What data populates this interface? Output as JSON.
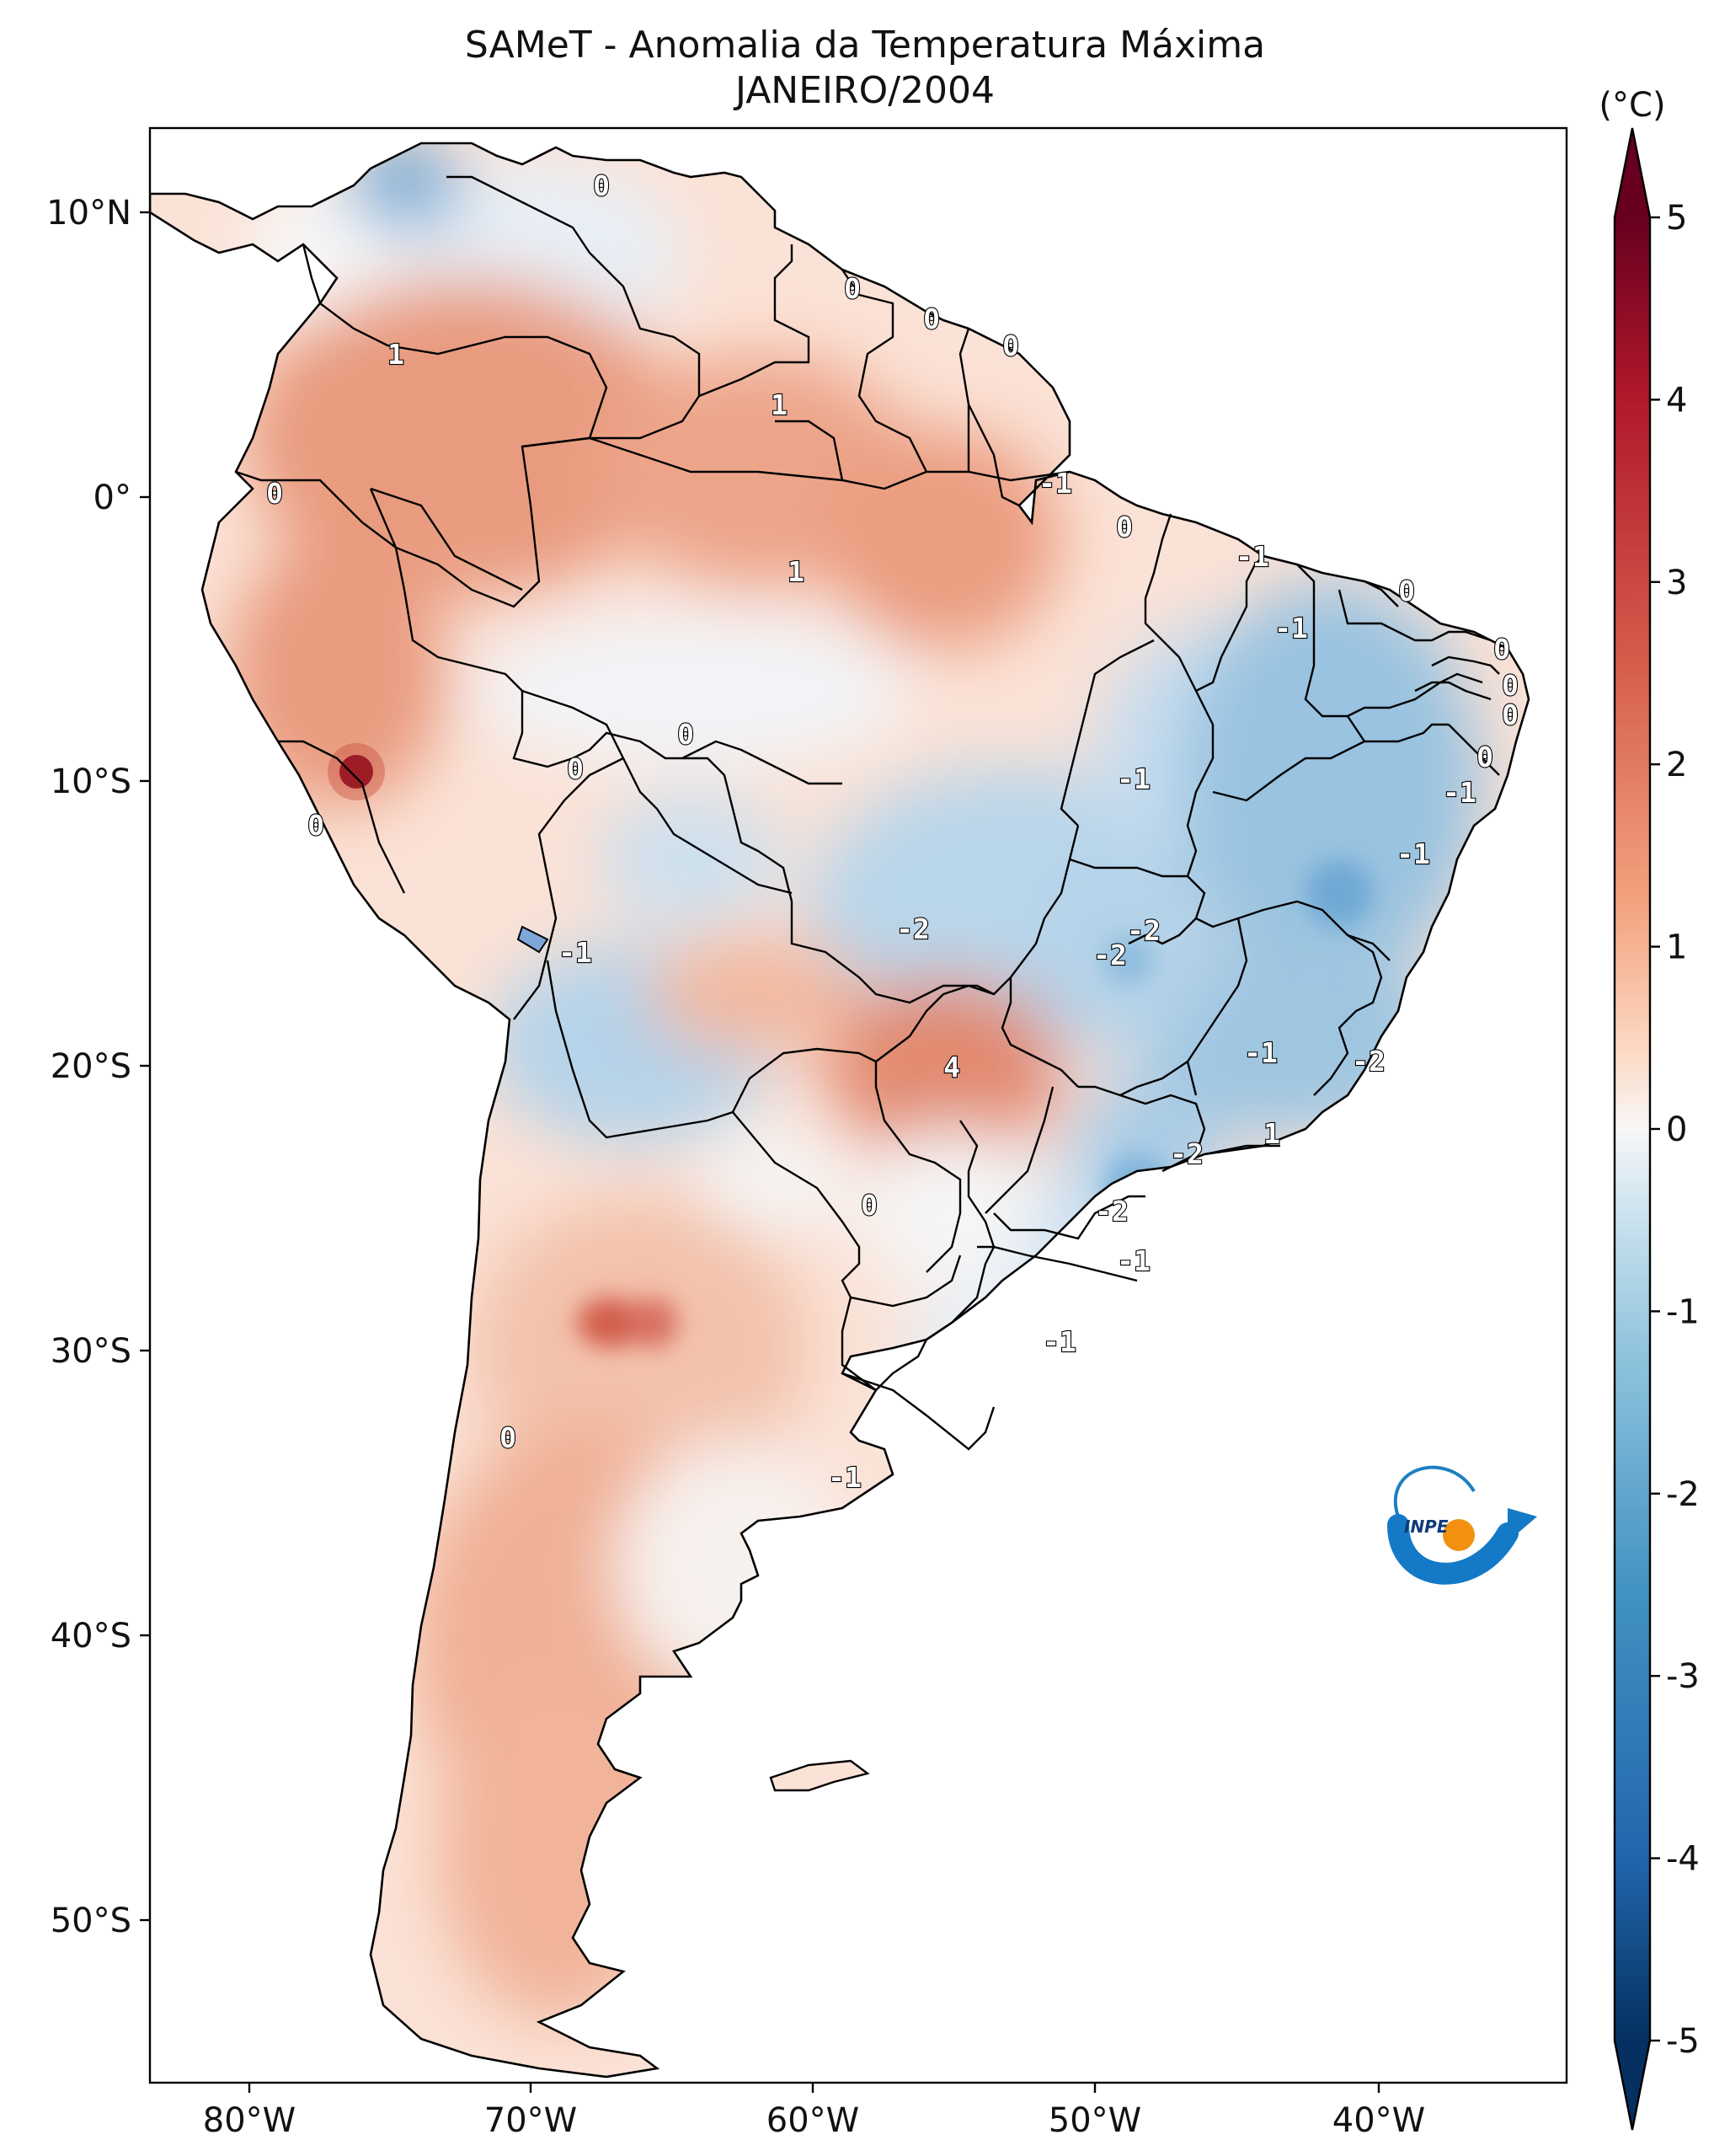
{
  "title": "SAMeT - Anomalia da Temperatura Máxima",
  "subtitle": "JANEIRO/2004",
  "colorbar": {
    "unit": "(°C)",
    "ticks": [
      "5",
      "4",
      "3",
      "2",
      "1",
      "0",
      "-1",
      "-2",
      "-3",
      "-4",
      "-5"
    ],
    "colors": {
      "max": "#67001f",
      "high": "#d6604d",
      "mid": "#f7f7f7",
      "low": "#4393c3",
      "min": "#053061"
    }
  },
  "axes": {
    "lon_labels": [
      "80°W",
      "70°W",
      "60°W",
      "50°W",
      "40°W"
    ],
    "lat_labels": [
      "10°N",
      "0°",
      "10°S",
      "20°S",
      "30°S",
      "40°S",
      "50°S"
    ]
  },
  "contour_labels": [
    {
      "text": "0"
    },
    {
      "text": "0"
    },
    {
      "text": "0"
    },
    {
      "text": "0"
    },
    {
      "text": "1"
    },
    {
      "text": "1"
    },
    {
      "text": "0"
    },
    {
      "text": "-1"
    },
    {
      "text": "0"
    },
    {
      "text": "1"
    },
    {
      "text": "-1"
    },
    {
      "text": "0"
    },
    {
      "text": "-1"
    },
    {
      "text": "0"
    },
    {
      "text": "0"
    },
    {
      "text": "0"
    },
    {
      "text": "0"
    },
    {
      "text": "0"
    },
    {
      "text": "-1"
    },
    {
      "text": "0"
    },
    {
      "text": "-1"
    },
    {
      "text": "0"
    },
    {
      "text": "-1"
    },
    {
      "text": "-2"
    },
    {
      "text": "-2"
    },
    {
      "text": "-1"
    },
    {
      "text": "-2"
    },
    {
      "text": "4"
    },
    {
      "text": "-1"
    },
    {
      "text": "1"
    },
    {
      "text": "-2"
    },
    {
      "text": "0"
    },
    {
      "text": "-2"
    },
    {
      "text": "-2"
    },
    {
      "text": "-1"
    },
    {
      "text": "-1"
    },
    {
      "text": "0"
    },
    {
      "text": "-1"
    }
  ],
  "logo": {
    "text": "INPE"
  }
}
